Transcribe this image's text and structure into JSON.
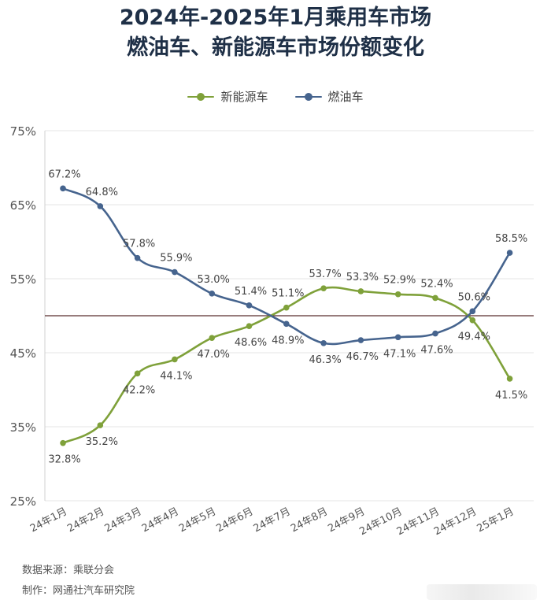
{
  "title": {
    "line1": "2024年-2025年1月乘用车市场",
    "line2": "燃油车、新能源车市场份额变化"
  },
  "legend": [
    {
      "label": "新能源车",
      "color": "#7fa13a"
    },
    {
      "label": "燃油车",
      "color": "#46648e"
    }
  ],
  "chart_data": {
    "type": "line",
    "title": "2024年-2025年1月乘用车市场 燃油车、新能源车市场份额变化",
    "xlabel": "",
    "ylabel": "",
    "categories": [
      "24年1月",
      "24年2月",
      "24年3月",
      "24年4月",
      "24年5月",
      "24年6月",
      "24年7月",
      "24年8月",
      "24年9月",
      "24年10月",
      "24年11月",
      "24年12月",
      "25年1月"
    ],
    "series": [
      {
        "name": "新能源车",
        "color": "#7fa13a",
        "values": [
          32.8,
          35.2,
          42.2,
          44.1,
          47.0,
          48.6,
          51.1,
          53.7,
          53.3,
          52.9,
          52.4,
          49.4,
          41.5
        ],
        "labels": [
          "32.8%",
          "35.2%",
          "42.2%",
          "44.1%",
          "47.0%",
          "48.6%",
          "51.1%",
          "53.7%",
          "53.3%",
          "52.9%",
          "52.4%",
          "49.4%",
          "41.5%"
        ]
      },
      {
        "name": "燃油车",
        "color": "#46648e",
        "values": [
          67.2,
          64.8,
          57.8,
          55.9,
          53.0,
          51.4,
          48.9,
          46.3,
          46.7,
          47.1,
          47.6,
          50.6,
          58.5
        ],
        "labels": [
          "67.2%",
          "64.8%",
          "57.8%",
          "55.9%",
          "53.0%",
          "51.4%",
          "48.9%",
          "46.3%",
          "46.7%",
          "47.1%",
          "47.6%",
          "50.6%",
          "58.5%"
        ]
      }
    ],
    "ylim": [
      25,
      75
    ],
    "yticks": [
      25,
      35,
      45,
      55,
      65,
      75
    ],
    "ytick_labels": [
      "25%",
      "35%",
      "45%",
      "55%",
      "65%",
      "75%"
    ],
    "reference_line": 50,
    "grid": true,
    "legend_position": "top-center"
  },
  "source": {
    "line1": "数据来源：乘联分会",
    "line2": "制作：网通社汽车研究院"
  }
}
